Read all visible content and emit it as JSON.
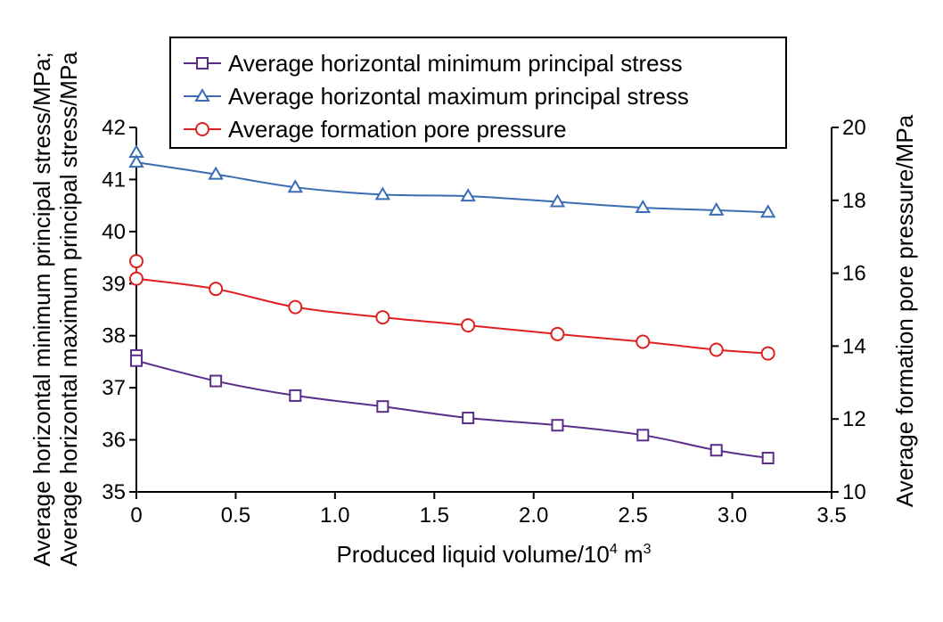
{
  "chart_data": {
    "type": "line",
    "x": [
      0,
      0.4,
      0.8,
      1.24,
      1.67,
      2.12,
      2.55,
      2.92,
      3.18
    ],
    "xlabel": "Produced liquid volume/10⁴ m³",
    "xlim": [
      0,
      3.5
    ],
    "xticks": [
      "0",
      "0.5",
      "1.0",
      "1.5",
      "2.0",
      "2.5",
      "3.0",
      "3.5"
    ],
    "ylabel_left": [
      "Average horizontal minimum principal stress/MPa;",
      "Average horizontal maximum principal stress/MPa"
    ],
    "ylim_left": [
      35,
      42
    ],
    "yticks_left": [
      "35",
      "36",
      "37",
      "38",
      "39",
      "40",
      "41",
      "42"
    ],
    "ylabel_right": "Average formation pore pressure/MPa",
    "ylim_right": [
      10,
      20
    ],
    "yticks_right": [
      "10",
      "12",
      "14",
      "16",
      "18",
      "20"
    ],
    "grid": false,
    "legend_position": "top",
    "series": [
      {
        "name": "Average horizontal minimum principal stress",
        "axis": "left",
        "marker": "square",
        "color": "#5b2d8a",
        "x": [
          0,
          0,
          0.4,
          0.8,
          1.24,
          1.67,
          2.12,
          2.55,
          2.92,
          3.18
        ],
        "values": [
          37.62,
          37.52,
          37.13,
          36.85,
          36.64,
          36.42,
          36.28,
          36.09,
          35.8,
          35.65
        ]
      },
      {
        "name": "Average horizontal maximum principal stress",
        "axis": "left",
        "marker": "triangle",
        "color": "#3b6db5",
        "x": [
          0,
          0,
          0.4,
          0.8,
          1.24,
          1.67,
          2.12,
          2.55,
          2.92,
          3.18
        ],
        "values": [
          41.52,
          41.33,
          41.1,
          40.85,
          40.71,
          40.68,
          40.57,
          40.46,
          40.41,
          40.37
        ]
      },
      {
        "name": "Average formation pore pressure",
        "axis": "right",
        "marker": "circle",
        "color": "#e02020",
        "x": [
          0,
          0,
          0.4,
          0.8,
          1.24,
          1.67,
          2.12,
          2.55,
          2.92,
          3.18
        ],
        "values": [
          16.33,
          15.85,
          15.57,
          15.07,
          14.79,
          14.57,
          14.33,
          14.12,
          13.9,
          13.8
        ]
      }
    ]
  }
}
